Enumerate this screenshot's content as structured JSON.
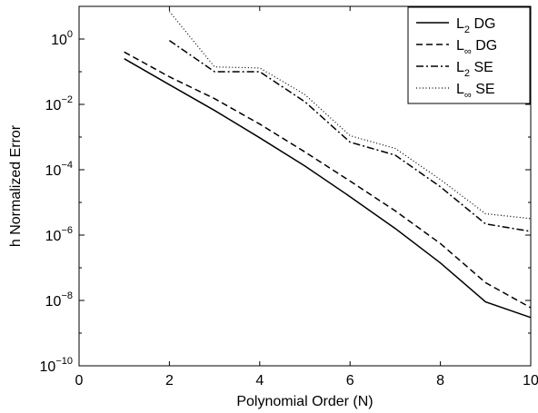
{
  "chart_data": {
    "type": "line",
    "title": "",
    "xlabel": "Polynomial Order (N)",
    "ylabel": "h Normalized Error",
    "x_scale": "linear",
    "y_scale": "log",
    "xlim": [
      0,
      10
    ],
    "ylim_exponent": [
      -10,
      1
    ],
    "xticks": [
      "0",
      "2",
      "4",
      "6",
      "8",
      "10"
    ],
    "yticks": [
      {
        "exp": -10,
        "base": "10",
        "sup": "−10"
      },
      {
        "exp": -8,
        "base": "10",
        "sup": "−8"
      },
      {
        "exp": -6,
        "base": "10",
        "sup": "−6"
      },
      {
        "exp": -4,
        "base": "10",
        "sup": "−4"
      },
      {
        "exp": -2,
        "base": "10",
        "sup": "−2"
      },
      {
        "exp": 0,
        "base": "10",
        "sup": "0"
      }
    ],
    "grid": false,
    "legend_position": "top-right",
    "series": [
      {
        "name": "L2 DG",
        "legend_main": "L",
        "legend_sub": "2",
        "legend_rest": " DG",
        "dash": "solid",
        "x": [
          1,
          2,
          3,
          4,
          5,
          6,
          7,
          8,
          9,
          10
        ],
        "y": [
          0.25,
          0.04,
          0.0065,
          0.00095,
          0.00013,
          1.5e-05,
          1.6e-06,
          1.4e-07,
          9e-09,
          3e-09
        ]
      },
      {
        "name": "L∞ DG",
        "legend_main": "L",
        "legend_sub": "∞",
        "legend_rest": " DG",
        "dash": "dashed",
        "x": [
          1,
          2,
          3,
          4,
          5,
          6,
          7,
          8,
          9,
          10
        ],
        "y": [
          0.4,
          0.07,
          0.015,
          0.0025,
          0.00035,
          4.5e-05,
          5.5e-06,
          5.5e-07,
          3.5e-08,
          6e-09
        ]
      },
      {
        "name": "L2 SE",
        "legend_main": "L",
        "legend_sub": "2",
        "legend_rest": " SE",
        "dash": "dashdot",
        "x": [
          2,
          3,
          4,
          5,
          6,
          7,
          8,
          9,
          10
        ],
        "y": [
          0.9,
          0.1,
          0.1,
          0.012,
          0.0007,
          0.00028,
          3e-05,
          2.2e-06,
          1.3e-06
        ]
      },
      {
        "name": "L∞ SE",
        "legend_main": "L",
        "legend_sub": "∞",
        "legend_rest": " SE",
        "dash": "dotted",
        "x": [
          2,
          3,
          4,
          5,
          6,
          7,
          8,
          9,
          10
        ],
        "y": [
          7,
          0.14,
          0.13,
          0.02,
          0.0011,
          0.00045,
          5e-05,
          4.5e-06,
          3.2e-06
        ]
      }
    ]
  }
}
